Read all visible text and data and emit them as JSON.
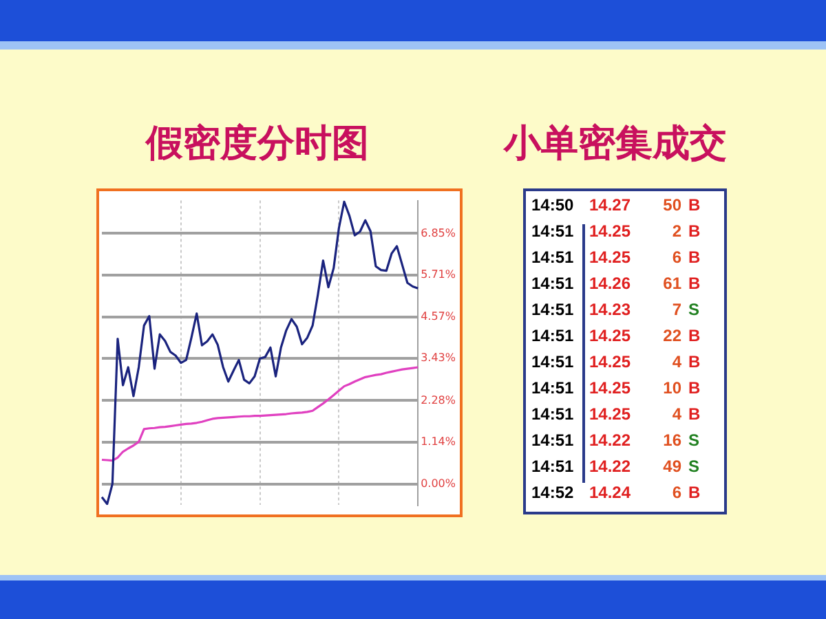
{
  "chart_data": [
    {
      "type": "line",
      "title": "假密度分时图",
      "categories": [
        null,
        null,
        null,
        null,
        null,
        null,
        null,
        null,
        null,
        null,
        null,
        null,
        null,
        null,
        null,
        null,
        null,
        null,
        null,
        null,
        null,
        null,
        null,
        null,
        null,
        null,
        null,
        null,
        null,
        null,
        null,
        null,
        null,
        null,
        null,
        null,
        null,
        null,
        null,
        null,
        null,
        null,
        null,
        null,
        null,
        null,
        null,
        null,
        null,
        null,
        null,
        null,
        null,
        null,
        null,
        null,
        null,
        null,
        null,
        null,
        null
      ],
      "series": [
        {
          "color": "#1a237e",
          "values": [
            -0.36,
            -0.55,
            0.0,
            3.97,
            2.7,
            3.19,
            2.4,
            3.19,
            4.33,
            4.59,
            3.15,
            4.09,
            3.91,
            3.61,
            3.51,
            3.31,
            3.39,
            4.0,
            4.66,
            3.79,
            3.9,
            4.09,
            3.8,
            3.2,
            2.8,
            3.1,
            3.39,
            2.85,
            2.75,
            2.94,
            3.43,
            3.47,
            3.73,
            2.94,
            3.73,
            4.2,
            4.51,
            4.3,
            3.82,
            4.0,
            4.33,
            5.17,
            6.11,
            5.38,
            5.9,
            7.0,
            7.72,
            7.33,
            6.8,
            6.9,
            7.21,
            6.91,
            5.95,
            5.85,
            5.83,
            6.3,
            6.5,
            6.0,
            5.5,
            5.4,
            5.35
          ]
        },
        {
          "color": "#e040c0",
          "values": [
            0.66,
            0.65,
            0.64,
            0.72,
            0.88,
            0.97,
            1.05,
            1.15,
            1.5,
            1.52,
            1.53,
            1.55,
            1.56,
            1.58,
            1.6,
            1.62,
            1.64,
            1.65,
            1.67,
            1.7,
            1.74,
            1.78,
            1.8,
            1.81,
            1.82,
            1.83,
            1.84,
            1.85,
            1.85,
            1.86,
            1.86,
            1.87,
            1.88,
            1.89,
            1.9,
            1.91,
            1.93,
            1.94,
            1.95,
            1.97,
            2.0,
            2.1,
            2.2,
            2.31,
            2.43,
            2.55,
            2.67,
            2.73,
            2.8,
            2.86,
            2.92,
            2.95,
            2.98,
            3.0,
            3.04,
            3.07,
            3.1,
            3.13,
            3.15,
            3.17,
            3.19
          ]
        }
      ],
      "ylim": [
        -0.58,
        7.75
      ],
      "yticks": [
        {
          "value": 0,
          "label": "0.00%"
        },
        {
          "value": 1.14,
          "label": "1.14%"
        },
        {
          "value": 2.28,
          "label": "2.28%"
        },
        {
          "value": 3.43,
          "label": "3.43%"
        },
        {
          "value": 4.57,
          "label": "4.57%"
        },
        {
          "value": 5.71,
          "label": "5.71%"
        },
        {
          "value": 6.85,
          "label": "6.85%"
        }
      ],
      "tick_labels": "y",
      "grid": true,
      "legend": false,
      "marker": "none",
      "line_style": "solid"
    },
    {
      "type": "other",
      "title": "小单密集成交",
      "annotations": [
        "14:50",
        "14.27",
        "50",
        "B",
        "14:51",
        "14.25",
        "2",
        "B",
        "14:51",
        "14.25",
        "6",
        "B",
        "14:51",
        "14.26",
        "61",
        "B",
        "14:51",
        "14.23",
        "7",
        "S",
        "14:51",
        "14.25",
        "22",
        "B",
        "14:51",
        "14.25",
        "4",
        "B",
        "14:51",
        "14.25",
        "10",
        "B",
        "14:51",
        "14.25",
        "4",
        "B",
        "14:51",
        "14.22",
        "16",
        "S",
        "14:51",
        "14.22",
        "49",
        "S",
        "14:52",
        "14.24",
        "6",
        "B"
      ],
      "colors": [
        "#000000",
        "#e02020",
        "#e05020",
        "#e02020",
        "#000000",
        "#e02020",
        "#e05020",
        "#e02020",
        "#000000",
        "#e02020",
        "#e05020",
        "#e02020",
        "#000000",
        "#e02020",
        "#e05020",
        "#e02020",
        "#000000",
        "#e02020",
        "#e05020",
        "#208020",
        "#000000",
        "#e02020",
        "#e05020",
        "#e02020",
        "#000000",
        "#e02020",
        "#e05020",
        "#e02020",
        "#000000",
        "#e02020",
        "#e05020",
        "#e02020",
        "#000000",
        "#e02020",
        "#e05020",
        "#e02020",
        "#000000",
        "#e02020",
        "#e05020",
        "#208020",
        "#000000",
        "#e02020",
        "#e05020",
        "#208020",
        "#000000",
        "#e02020",
        "#e05020",
        "#e02020"
      ]
    }
  ]
}
